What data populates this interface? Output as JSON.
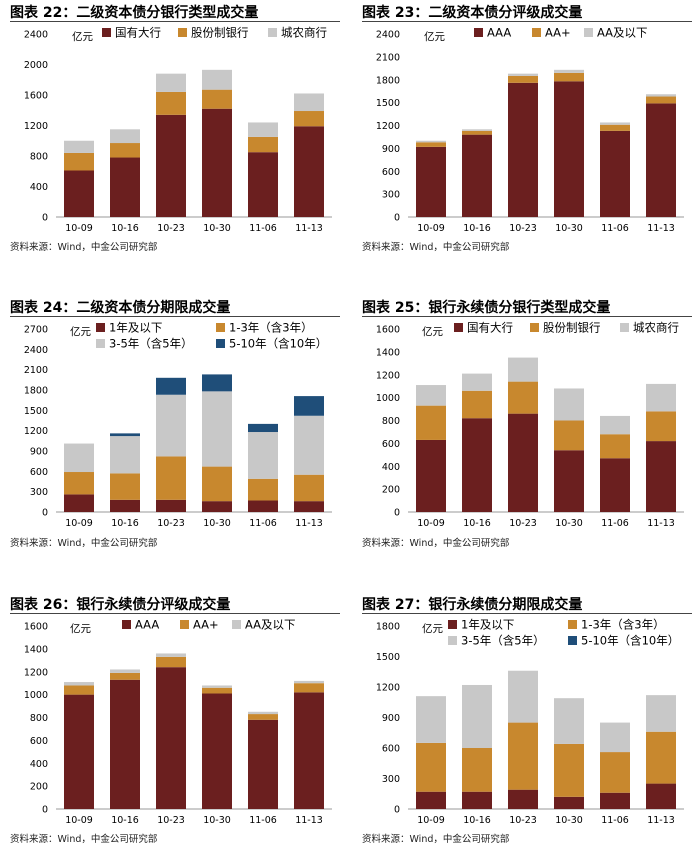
{
  "colors": {
    "dark": "#6B1F1F",
    "orange": "#C8882E",
    "gray": "#C8C8C8",
    "blue": "#1F4E79"
  },
  "chart_data": [
    {
      "id": "c22",
      "type": "bar",
      "stacked": true,
      "title": "图表 22：二级资本债分银行类型成交量",
      "unit": "亿元",
      "source": "资料来源：Wind，中金公司研究部",
      "categories": [
        "10-09",
        "10-16",
        "10-23",
        "10-30",
        "11-06",
        "11-13"
      ],
      "ylim": [
        0,
        2400
      ],
      "yticks": [
        0,
        400,
        800,
        1200,
        1600,
        2000,
        2400
      ],
      "series": [
        {
          "name": "国有大行",
          "color": "#6B1F1F",
          "values": [
            610,
            780,
            1340,
            1420,
            850,
            1190
          ]
        },
        {
          "name": "股份制银行",
          "color": "#C8882E",
          "values": [
            230,
            190,
            300,
            250,
            200,
            200
          ]
        },
        {
          "name": "城农商行",
          "color": "#C8C8C8",
          "values": [
            160,
            180,
            240,
            260,
            190,
            230
          ]
        }
      ]
    },
    {
      "id": "c23",
      "type": "bar",
      "stacked": true,
      "title": "图表 23：二级资本债分评级成交量",
      "unit": "亿元",
      "source": "资料来源：Wind，中金公司研究部",
      "categories": [
        "10-09",
        "10-16",
        "10-23",
        "10-30",
        "11-06",
        "11-13"
      ],
      "ylim": [
        0,
        2400
      ],
      "yticks": [
        0,
        300,
        600,
        900,
        1200,
        1500,
        1800,
        2100,
        2400
      ],
      "series": [
        {
          "name": "AAA",
          "color": "#6B1F1F",
          "values": [
            920,
            1080,
            1760,
            1780,
            1130,
            1490
          ]
        },
        {
          "name": "AA+",
          "color": "#C8882E",
          "values": [
            60,
            50,
            90,
            110,
            80,
            90
          ]
        },
        {
          "name": "AA及以下",
          "color": "#C8C8C8",
          "values": [
            20,
            20,
            30,
            40,
            30,
            30
          ]
        }
      ]
    },
    {
      "id": "c24",
      "type": "bar",
      "stacked": true,
      "title": "图表 24：二级资本债分期限成交量",
      "unit": "亿元",
      "source": "资料来源：Wind，中金公司研究部",
      "categories": [
        "10-09",
        "10-16",
        "10-23",
        "10-30",
        "11-06",
        "11-13"
      ],
      "ylim": [
        0,
        2700
      ],
      "yticks": [
        0,
        300,
        600,
        900,
        1200,
        1500,
        1800,
        2100,
        2400,
        2700
      ],
      "series": [
        {
          "name": "1年及以下",
          "color": "#6B1F1F",
          "values": [
            260,
            180,
            180,
            160,
            170,
            160
          ]
        },
        {
          "name": "1-3年（含3年）",
          "color": "#C8882E",
          "values": [
            330,
            390,
            640,
            510,
            320,
            390
          ]
        },
        {
          "name": "3-5年（含5年）",
          "color": "#C8C8C8",
          "values": [
            420,
            550,
            910,
            1110,
            690,
            870
          ]
        },
        {
          "name": "5-10年（含10年）",
          "color": "#1F4E79",
          "values": [
            0,
            40,
            250,
            250,
            120,
            290
          ]
        }
      ]
    },
    {
      "id": "c25",
      "type": "bar",
      "stacked": true,
      "title": "图表 25：银行永续债分银行类型成交量",
      "unit": "亿元",
      "source": "资料来源：Wind，中金公司研究部",
      "categories": [
        "10-09",
        "10-16",
        "10-23",
        "10-30",
        "11-06",
        "11-13"
      ],
      "ylim": [
        0,
        1600
      ],
      "yticks": [
        0,
        200,
        400,
        600,
        800,
        1000,
        1200,
        1400,
        1600
      ],
      "series": [
        {
          "name": "国有大行",
          "color": "#6B1F1F",
          "values": [
            630,
            820,
            860,
            540,
            470,
            620
          ]
        },
        {
          "name": "股份制银行",
          "color": "#C8882E",
          "values": [
            300,
            240,
            280,
            260,
            210,
            260
          ]
        },
        {
          "name": "城农商行",
          "color": "#C8C8C8",
          "values": [
            180,
            150,
            210,
            280,
            160,
            240
          ]
        }
      ]
    },
    {
      "id": "c26",
      "type": "bar",
      "stacked": true,
      "title": "图表 26：银行永续债分评级成交量",
      "unit": "亿元",
      "source": "资料来源：Wind，中金公司研究部",
      "categories": [
        "10-09",
        "10-16",
        "10-23",
        "10-30",
        "11-06",
        "11-13"
      ],
      "ylim": [
        0,
        1600
      ],
      "yticks": [
        0,
        200,
        400,
        600,
        800,
        1000,
        1200,
        1400,
        1600
      ],
      "series": [
        {
          "name": "AAA",
          "color": "#6B1F1F",
          "values": [
            1000,
            1130,
            1240,
            1010,
            780,
            1020
          ]
        },
        {
          "name": "AA+",
          "color": "#C8882E",
          "values": [
            80,
            60,
            90,
            50,
            50,
            80
          ]
        },
        {
          "name": "AA及以下",
          "color": "#C8C8C8",
          "values": [
            30,
            30,
            30,
            20,
            20,
            20
          ]
        }
      ]
    },
    {
      "id": "c27",
      "type": "bar",
      "stacked": true,
      "title": "图表 27：银行永续债分期限成交量",
      "unit": "亿元",
      "source": "资料来源：Wind，中金公司研究部",
      "categories": [
        "10-09",
        "10-16",
        "10-23",
        "10-30",
        "11-06",
        "11-13"
      ],
      "ylim": [
        0,
        1800
      ],
      "yticks": [
        0,
        300,
        600,
        900,
        1200,
        1500,
        1800
      ],
      "series": [
        {
          "name": "1年及以下",
          "color": "#6B1F1F",
          "values": [
            170,
            170,
            190,
            120,
            160,
            250
          ]
        },
        {
          "name": "1-3年（含3年）",
          "color": "#C8882E",
          "values": [
            480,
            430,
            660,
            520,
            400,
            510
          ]
        },
        {
          "name": "3-5年（含5年）",
          "color": "#C8C8C8",
          "values": [
            460,
            620,
            510,
            450,
            290,
            360
          ]
        },
        {
          "name": "5-10年（含10年）",
          "color": "#1F4E79",
          "values": [
            0,
            0,
            0,
            0,
            0,
            0
          ]
        }
      ]
    }
  ]
}
